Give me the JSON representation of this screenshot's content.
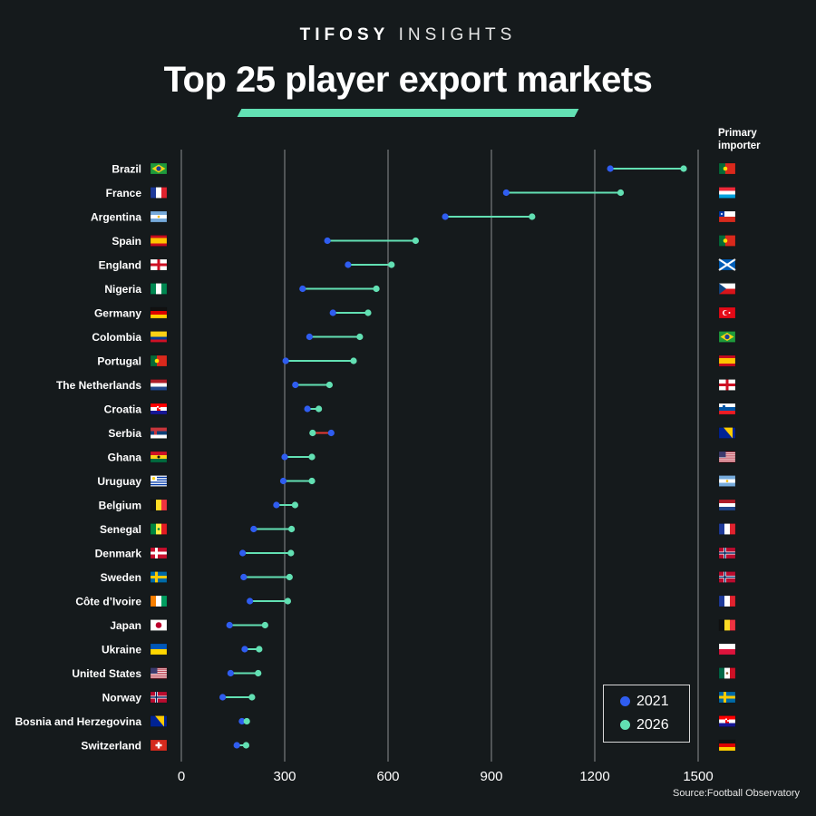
{
  "header": {
    "brand_bold": "TIFOSY",
    "brand_light": "INSIGHTS",
    "title": "Top 25 player export markets"
  },
  "primary_importer_label": "Primary importer",
  "source": "Source:Football Observatory",
  "colors": {
    "background": "#151a1c",
    "series_2021": "#2f5df0",
    "series_2026": "#62e0b3",
    "decline_line": "#e53935",
    "gridline": "#8a8f91",
    "accent_bar": "#62e0b3"
  },
  "chart_data": {
    "type": "dumbbell",
    "title": "Top 25 player export markets",
    "xlabel": "",
    "ylabel": "",
    "xlim": [
      0,
      1500
    ],
    "xticks": [
      0,
      300,
      600,
      900,
      1200,
      1500
    ],
    "grid": "vertical",
    "legend_position": "bottom-right",
    "series": [
      {
        "name": "2021",
        "color": "#2f5df0"
      },
      {
        "name": "2026",
        "color": "#62e0b3"
      }
    ],
    "rows": [
      {
        "country": "Brazil",
        "flag": "brazil-flag",
        "v2021": 1245,
        "v2026": 1458,
        "importer_flag": "portugal-flag"
      },
      {
        "country": "France",
        "flag": "france-flag",
        "v2021": 943,
        "v2026": 1275,
        "importer_flag": "luxembourg-flag"
      },
      {
        "country": "Argentina",
        "flag": "argentina-flag",
        "v2021": 766,
        "v2026": 1018,
        "importer_flag": "chile-flag"
      },
      {
        "country": "Spain",
        "flag": "spain-flag",
        "v2021": 424,
        "v2026": 680,
        "importer_flag": "portugal-flag"
      },
      {
        "country": "England",
        "flag": "england-flag",
        "v2021": 484,
        "v2026": 610,
        "importer_flag": "scotland-flag"
      },
      {
        "country": "Nigeria",
        "flag": "nigeria-flag",
        "v2021": 352,
        "v2026": 566,
        "importer_flag": "czechia-flag"
      },
      {
        "country": "Germany",
        "flag": "germany-flag",
        "v2021": 440,
        "v2026": 542,
        "importer_flag": "turkey-flag"
      },
      {
        "country": "Colombia",
        "flag": "colombia-flag",
        "v2021": 372,
        "v2026": 518,
        "importer_flag": "brazil-flag"
      },
      {
        "country": "Portugal",
        "flag": "portugal-flag",
        "v2021": 303,
        "v2026": 500,
        "importer_flag": "spain-flag"
      },
      {
        "country": "The Netherlands",
        "flag": "netherlands-flag",
        "v2021": 331,
        "v2026": 430,
        "importer_flag": "england-flag"
      },
      {
        "country": "Croatia",
        "flag": "croatia-flag",
        "v2021": 366,
        "v2026": 399,
        "importer_flag": "slovenia-flag"
      },
      {
        "country": "Serbia",
        "flag": "serbia-flag",
        "v2021": 435,
        "v2026": 381,
        "importer_flag": "bosnia-flag"
      },
      {
        "country": "Ghana",
        "flag": "ghana-flag",
        "v2021": 300,
        "v2026": 379,
        "importer_flag": "usa-flag"
      },
      {
        "country": "Uruguay",
        "flag": "uruguay-flag",
        "v2021": 296,
        "v2026": 379,
        "importer_flag": "argentina-flag"
      },
      {
        "country": "Belgium",
        "flag": "belgium-flag",
        "v2021": 276,
        "v2026": 330,
        "importer_flag": "netherlands-flag"
      },
      {
        "country": "Senegal",
        "flag": "senegal-flag",
        "v2021": 210,
        "v2026": 320,
        "importer_flag": "france-flag"
      },
      {
        "country": "Denmark",
        "flag": "denmark-flag",
        "v2021": 178,
        "v2026": 318,
        "importer_flag": "norway-flag"
      },
      {
        "country": "Sweden",
        "flag": "sweden-flag",
        "v2021": 181,
        "v2026": 314,
        "importer_flag": "norway-flag"
      },
      {
        "country": "Côte d’Ivoire",
        "flag": "ivory-coast-flag",
        "v2021": 199,
        "v2026": 309,
        "importer_flag": "france-flag"
      },
      {
        "country": "Japan",
        "flag": "japan-flag",
        "v2021": 140,
        "v2026": 243,
        "importer_flag": "belgium-flag"
      },
      {
        "country": "Ukraine",
        "flag": "ukraine-flag",
        "v2021": 184,
        "v2026": 226,
        "importer_flag": "poland-flag"
      },
      {
        "country": "United States",
        "flag": "usa-flag",
        "v2021": 143,
        "v2026": 223,
        "importer_flag": "mexico-flag"
      },
      {
        "country": "Norway",
        "flag": "norway-flag",
        "v2021": 120,
        "v2026": 205,
        "importer_flag": "sweden-flag"
      },
      {
        "country": "Bosnia and Herzegovina",
        "flag": "bosnia-flag",
        "v2021": 176,
        "v2026": 190,
        "importer_flag": "croatia-flag"
      },
      {
        "country": "Switzerland",
        "flag": "switzerland-flag",
        "v2021": 161,
        "v2026": 188,
        "importer_flag": "germany-flag"
      }
    ]
  }
}
